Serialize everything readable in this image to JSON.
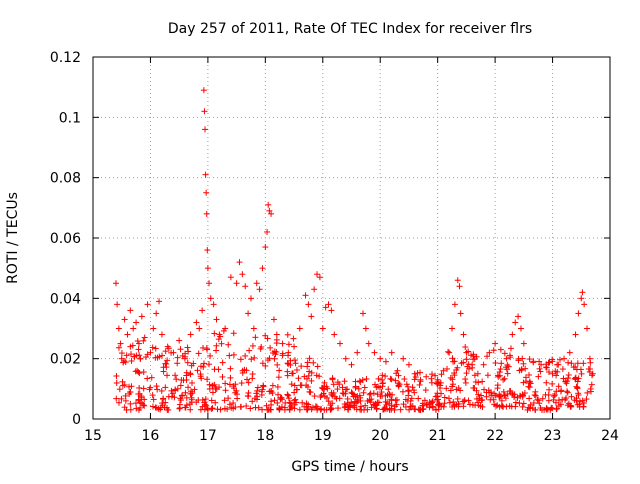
{
  "chart_data": {
    "type": "scatter",
    "title": "Day 257 of 2011, Rate Of TEC Index for receiver flrs",
    "xlabel": "GPS time / hours",
    "ylabel": "ROTI / TECUs",
    "xlim": [
      15,
      24
    ],
    "ylim": [
      0,
      0.12
    ],
    "xticks": [
      "15",
      "16",
      "17",
      "18",
      "19",
      "20",
      "21",
      "22",
      "23",
      "24"
    ],
    "yticks": [
      "0",
      "0.02",
      "0.04",
      "0.06",
      "0.08",
      "0.1",
      "0.12"
    ],
    "grid": true,
    "marker": "+",
    "color": "#ff0000",
    "series": [
      {
        "name": "ROTI",
        "points": [
          [
            15.4,
            0.045
          ],
          [
            15.42,
            0.038
          ],
          [
            15.45,
            0.03
          ],
          [
            15.48,
            0.025
          ],
          [
            15.5,
            0.02
          ],
          [
            15.55,
            0.033
          ],
          [
            15.6,
            0.028
          ],
          [
            15.65,
            0.036
          ],
          [
            15.7,
            0.03
          ],
          [
            15.75,
            0.032
          ],
          [
            15.8,
            0.025
          ],
          [
            15.85,
            0.034
          ],
          [
            15.9,
            0.027
          ],
          [
            15.95,
            0.038
          ],
          [
            16.0,
            0.022
          ],
          [
            16.05,
            0.03
          ],
          [
            16.1,
            0.035
          ],
          [
            16.15,
            0.039
          ],
          [
            16.2,
            0.028
          ],
          [
            16.3,
            0.024
          ],
          [
            16.4,
            0.022
          ],
          [
            16.5,
            0.026
          ],
          [
            16.6,
            0.02
          ],
          [
            16.7,
            0.028
          ],
          [
            16.8,
            0.032
          ],
          [
            16.85,
            0.03
          ],
          [
            16.9,
            0.036
          ],
          [
            16.93,
            0.109
          ],
          [
            16.94,
            0.102
          ],
          [
            16.95,
            0.096
          ],
          [
            16.96,
            0.081
          ],
          [
            16.97,
            0.075
          ],
          [
            16.98,
            0.068
          ],
          [
            16.99,
            0.056
          ],
          [
            17.0,
            0.05
          ],
          [
            17.02,
            0.045
          ],
          [
            17.05,
            0.04
          ],
          [
            17.1,
            0.038
          ],
          [
            17.15,
            0.033
          ],
          [
            17.2,
            0.028
          ],
          [
            17.3,
            0.03
          ],
          [
            17.4,
            0.047
          ],
          [
            17.5,
            0.045
          ],
          [
            17.55,
            0.052
          ],
          [
            17.6,
            0.048
          ],
          [
            17.65,
            0.044
          ],
          [
            17.7,
            0.035
          ],
          [
            17.75,
            0.04
          ],
          [
            17.8,
            0.03
          ],
          [
            17.85,
            0.045
          ],
          [
            17.9,
            0.043
          ],
          [
            17.95,
            0.05
          ],
          [
            18.0,
            0.057
          ],
          [
            18.03,
            0.062
          ],
          [
            18.05,
            0.071
          ],
          [
            18.07,
            0.069
          ],
          [
            18.1,
            0.068
          ],
          [
            18.15,
            0.033
          ],
          [
            18.2,
            0.028
          ],
          [
            18.3,
            0.025
          ],
          [
            18.4,
            0.022
          ],
          [
            18.5,
            0.024
          ],
          [
            18.6,
            0.03
          ],
          [
            18.7,
            0.041
          ],
          [
            18.75,
            0.038
          ],
          [
            18.8,
            0.034
          ],
          [
            18.85,
            0.043
          ],
          [
            18.9,
            0.048
          ],
          [
            18.95,
            0.047
          ],
          [
            19.0,
            0.03
          ],
          [
            19.05,
            0.037
          ],
          [
            19.1,
            0.038
          ],
          [
            19.15,
            0.036
          ],
          [
            19.2,
            0.028
          ],
          [
            19.3,
            0.025
          ],
          [
            19.4,
            0.02
          ],
          [
            19.5,
            0.018
          ],
          [
            19.6,
            0.022
          ],
          [
            19.7,
            0.035
          ],
          [
            19.75,
            0.03
          ],
          [
            19.8,
            0.025
          ],
          [
            19.9,
            0.022
          ],
          [
            20.0,
            0.02
          ],
          [
            20.1,
            0.019
          ],
          [
            20.2,
            0.022
          ],
          [
            20.3,
            0.016
          ],
          [
            20.4,
            0.02
          ],
          [
            20.5,
            0.018
          ],
          [
            20.6,
            0.015
          ],
          [
            20.7,
            0.013
          ],
          [
            20.8,
            0.014
          ],
          [
            20.9,
            0.012
          ],
          [
            21.0,
            0.013
          ],
          [
            21.1,
            0.016
          ],
          [
            21.2,
            0.022
          ],
          [
            21.25,
            0.03
          ],
          [
            21.3,
            0.038
          ],
          [
            21.35,
            0.046
          ],
          [
            21.38,
            0.044
          ],
          [
            21.4,
            0.035
          ],
          [
            21.45,
            0.028
          ],
          [
            21.5,
            0.022
          ],
          [
            21.6,
            0.018
          ],
          [
            21.7,
            0.015
          ],
          [
            21.8,
            0.018
          ],
          [
            21.9,
            0.022
          ],
          [
            22.0,
            0.025
          ],
          [
            22.1,
            0.023
          ],
          [
            22.2,
            0.02
          ],
          [
            22.3,
            0.028
          ],
          [
            22.35,
            0.032
          ],
          [
            22.4,
            0.034
          ],
          [
            22.45,
            0.03
          ],
          [
            22.5,
            0.025
          ],
          [
            22.6,
            0.012
          ],
          [
            22.7,
            0.009
          ],
          [
            22.8,
            0.018
          ],
          [
            22.9,
            0.017
          ],
          [
            23.0,
            0.015
          ],
          [
            23.1,
            0.018
          ],
          [
            23.2,
            0.02
          ],
          [
            23.3,
            0.022
          ],
          [
            23.4,
            0.028
          ],
          [
            23.45,
            0.035
          ],
          [
            23.5,
            0.04
          ],
          [
            23.52,
            0.042
          ],
          [
            23.55,
            0.038
          ],
          [
            23.6,
            0.03
          ],
          [
            23.65,
            0.02
          ],
          [
            23.7,
            0.015
          ]
        ],
        "band_segments": [
          [
            15.4,
            16.0,
            0.003,
            0.026
          ],
          [
            16.0,
            16.9,
            0.003,
            0.024
          ],
          [
            16.9,
            17.5,
            0.003,
            0.03
          ],
          [
            17.5,
            18.5,
            0.003,
            0.028
          ],
          [
            18.5,
            18.95,
            0.003,
            0.022
          ],
          [
            18.95,
            20.0,
            0.003,
            0.014
          ],
          [
            20.0,
            21.1,
            0.003,
            0.016
          ],
          [
            21.1,
            22.5,
            0.004,
            0.024
          ],
          [
            22.5,
            23.1,
            0.003,
            0.02
          ],
          [
            23.1,
            23.7,
            0.004,
            0.02
          ]
        ]
      }
    ]
  }
}
